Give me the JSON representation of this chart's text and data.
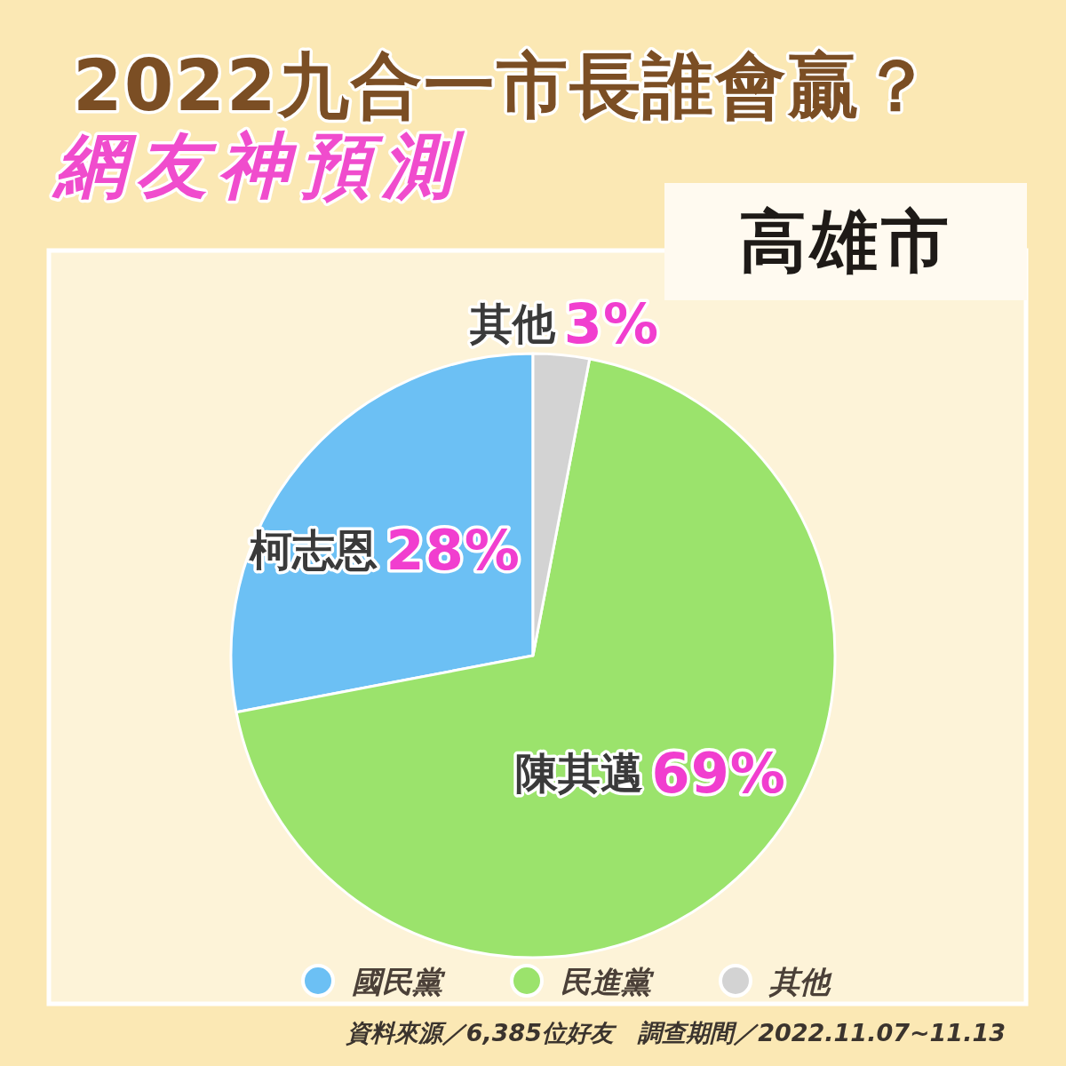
{
  "chart_data": {
    "type": "pie",
    "title": "2022九合一市長誰會贏？",
    "subtitle": "網友神預測",
    "categories": [
      "國民黨",
      "民進黨",
      "其他"
    ],
    "values": [
      28,
      69,
      3
    ],
    "colors": [
      "#6cc0f4",
      "#9be36c",
      "#d3d3d3"
    ],
    "value_labels": [
      "28%",
      "69%",
      "3%"
    ],
    "legend": "bottom",
    "annotations": [
      "高雄市",
      {
        "text": "柯志恩",
        "x": "國民黨"
      },
      {
        "text": "陳其邁",
        "x": "民進黨"
      },
      {
        "text": "其他",
        "x": "其他"
      },
      "資料來源／6,385位好友　調查期間／2022.11.07~11.13"
    ]
  }
}
